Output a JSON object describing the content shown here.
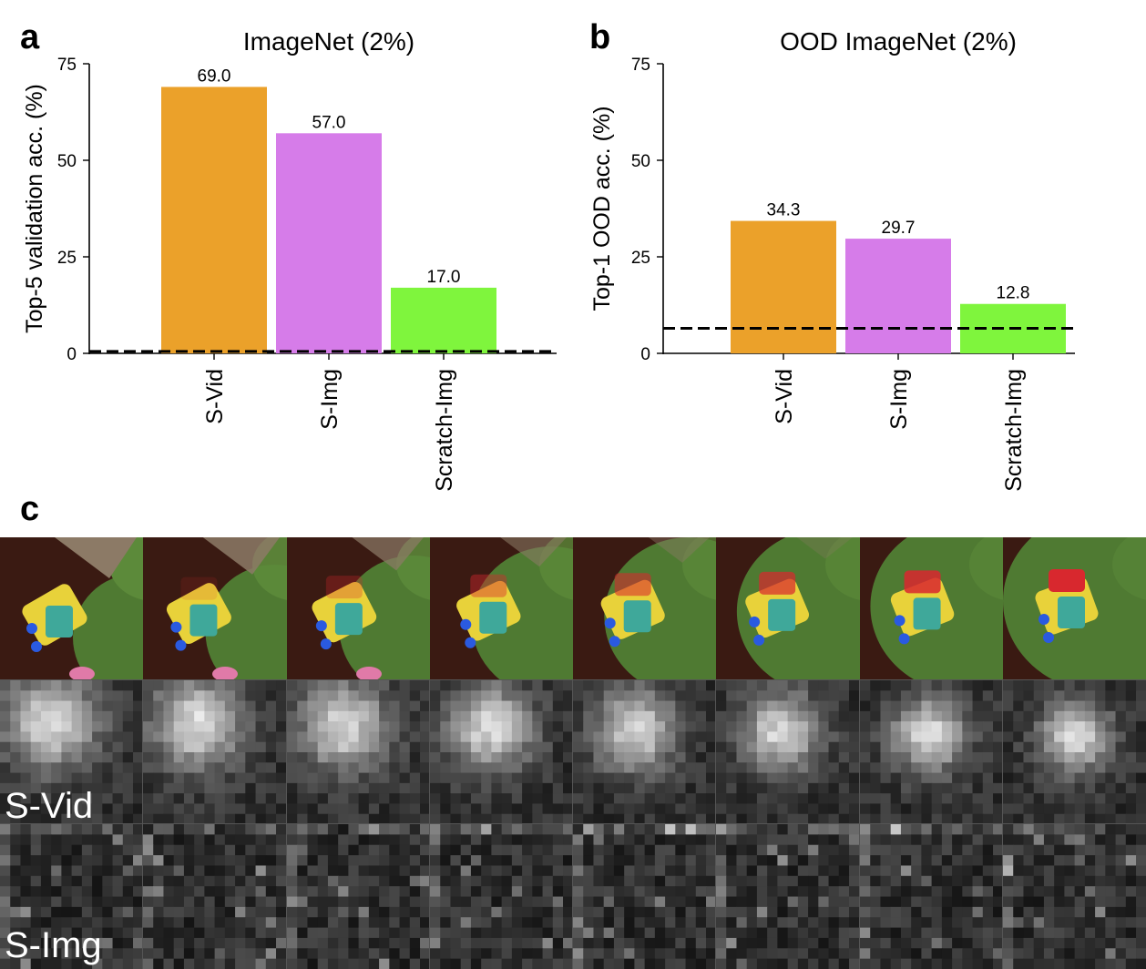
{
  "chart_data": [
    {
      "panel": "a",
      "type": "bar",
      "title": "ImageNet (2%)",
      "ylabel": "Top-5 validation acc. (%)",
      "xlabel": "",
      "categories": [
        "S-Vid",
        "S-Img",
        "Scratch-Img"
      ],
      "values": [
        69.0,
        57.0,
        17.0
      ],
      "value_labels": [
        "69.0",
        "57.0",
        "17.0"
      ],
      "colors": [
        "#eba12a",
        "#d67ce9",
        "#7ff53d"
      ],
      "ylim": [
        0,
        75
      ],
      "yticks": [
        0,
        25,
        50,
        75
      ],
      "ytick_labels": [
        "0",
        "25",
        "50",
        "75"
      ],
      "chance_line": 0.5
    },
    {
      "panel": "b",
      "type": "bar",
      "title": "OOD ImageNet (2%)",
      "ylabel": "Top-1 OOD acc. (%)",
      "xlabel": "",
      "categories": [
        "S-Vid",
        "S-Img",
        "Scratch-Img"
      ],
      "values": [
        34.3,
        29.7,
        12.8
      ],
      "value_labels": [
        "34.3",
        "29.7",
        "12.8"
      ],
      "colors": [
        "#eba12a",
        "#d67ce9",
        "#7ff53d"
      ],
      "ylim": [
        0,
        75
      ],
      "yticks": [
        0,
        25,
        50,
        75
      ],
      "ytick_labels": [
        "0",
        "25",
        "50",
        "75"
      ],
      "chance_line": 6.5
    }
  ],
  "panel_c": {
    "letter": "c",
    "num_frames": 8,
    "rows": [
      "frames",
      "S-Vid",
      "S-Img"
    ],
    "row_labels": {
      "svid": "S-Vid",
      "simg": "S-Img"
    }
  }
}
